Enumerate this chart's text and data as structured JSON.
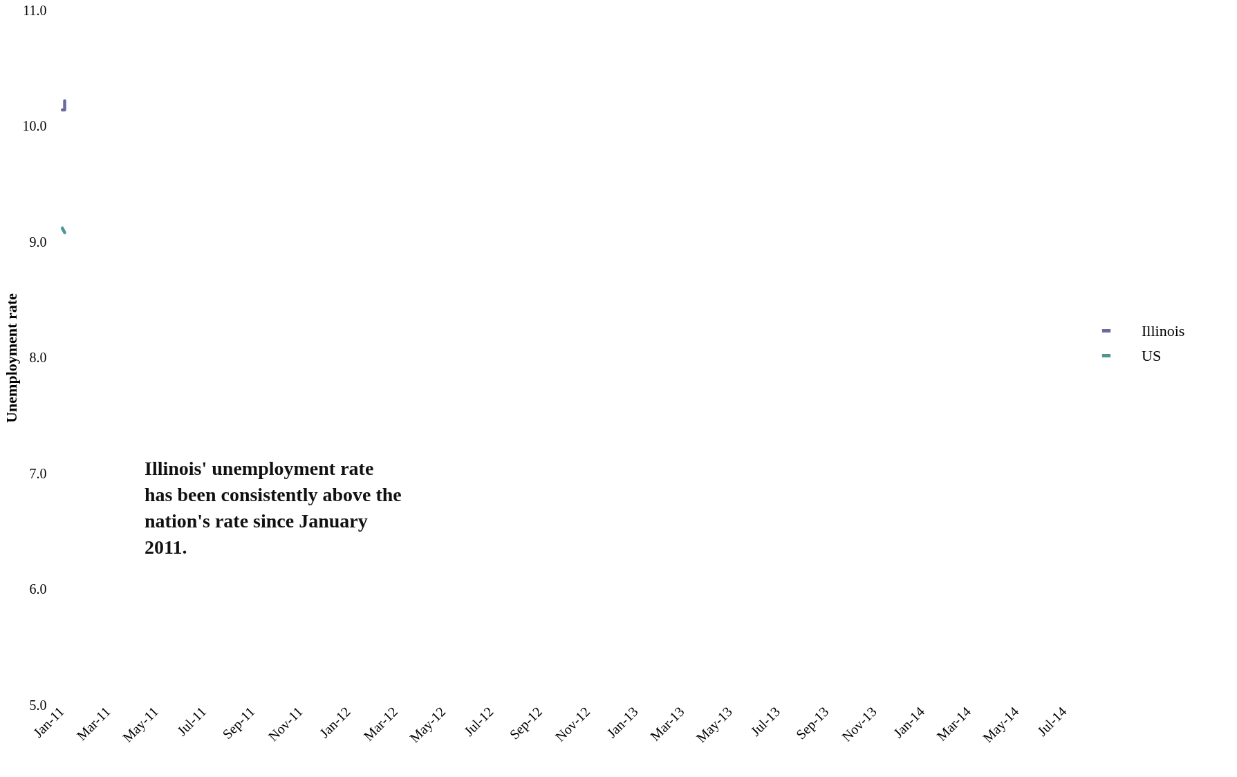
{
  "chart_data": {
    "type": "line",
    "ylabel": "Unemployment rate",
    "annotations": [
      "Illinois'  unemployment rate has been consistently above the nation's rate since January 2011."
    ],
    "series": [
      {
        "name": "Illinois",
        "color": "#6a6aa0",
        "x": [
          "2011-01-02",
          "2011-01-05",
          "2011-01-05"
        ],
        "values": [
          10.14,
          10.14,
          10.22
        ]
      },
      {
        "name": "US",
        "color": "#4f9595",
        "x": [
          "2011-01-02",
          "2011-01-05"
        ],
        "values": [
          9.12,
          9.08
        ]
      }
    ],
    "xlim": [
      "2011-01-01",
      "2014-07-01"
    ],
    "xticks": [
      {
        "value": "2011-01-01",
        "label": "Jan-11"
      },
      {
        "value": "2011-03-01",
        "label": "Mar-11"
      },
      {
        "value": "2011-05-01",
        "label": "May-11"
      },
      {
        "value": "2011-07-01",
        "label": "Jul-11"
      },
      {
        "value": "2011-09-01",
        "label": "Sep-11"
      },
      {
        "value": "2011-11-01",
        "label": "Nov-11"
      },
      {
        "value": "2012-01-01",
        "label": "Jan-12"
      },
      {
        "value": "2012-03-01",
        "label": "Mar-12"
      },
      {
        "value": "2012-05-01",
        "label": "May-12"
      },
      {
        "value": "2012-07-01",
        "label": "Jul-12"
      },
      {
        "value": "2012-09-01",
        "label": "Sep-12"
      },
      {
        "value": "2012-11-01",
        "label": "Nov-12"
      },
      {
        "value": "2013-01-01",
        "label": "Jan-13"
      },
      {
        "value": "2013-03-01",
        "label": "Mar-13"
      },
      {
        "value": "2013-05-01",
        "label": "May-13"
      },
      {
        "value": "2013-07-01",
        "label": "Jul-13"
      },
      {
        "value": "2013-09-01",
        "label": "Sep-13"
      },
      {
        "value": "2013-11-01",
        "label": "Nov-13"
      },
      {
        "value": "2014-01-01",
        "label": "Jan-14"
      },
      {
        "value": "2014-03-01",
        "label": "Mar-14"
      },
      {
        "value": "2014-05-01",
        "label": "May-14"
      },
      {
        "value": "2014-07-01",
        "label": "Jul-14"
      }
    ],
    "ylim": [
      5,
      11
    ],
    "yticks": [
      {
        "value": 5,
        "label": "5.0"
      },
      {
        "value": 6,
        "label": "6.0"
      },
      {
        "value": 7,
        "label": "7.0"
      },
      {
        "value": 8,
        "label": "8.0"
      },
      {
        "value": 9,
        "label": "9.0"
      },
      {
        "value": 10,
        "label": "10.0"
      },
      {
        "value": 11,
        "label": "11.0"
      }
    ],
    "grid": false,
    "legend": "right",
    "marker": "none",
    "line_style": "solid"
  }
}
